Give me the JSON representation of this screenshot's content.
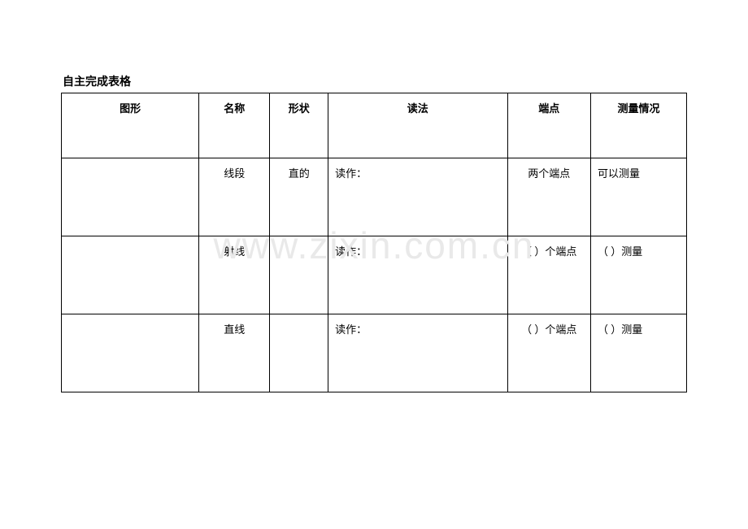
{
  "title": "自主完成表格",
  "watermark": "www.zixin.com.cn",
  "headers": {
    "graphic": "图形",
    "name": "名称",
    "shape": "形状",
    "reading": "读法",
    "endpoint": "端点",
    "measure": "测量情况"
  },
  "rows": [
    {
      "graphic": "",
      "name": "线段",
      "shape": "直的",
      "reading": "读作：",
      "endpoint": "两个端点",
      "measure": "可以测量"
    },
    {
      "graphic": "",
      "name": "射线",
      "shape": "",
      "reading": "读作：",
      "endpoint": "（  ）个端点",
      "measure": "（    ）测量"
    },
    {
      "graphic": "",
      "name": "直线",
      "shape": "",
      "reading": "读作：",
      "endpoint": "（  ）个端点",
      "measure": "（    ）测量"
    }
  ]
}
